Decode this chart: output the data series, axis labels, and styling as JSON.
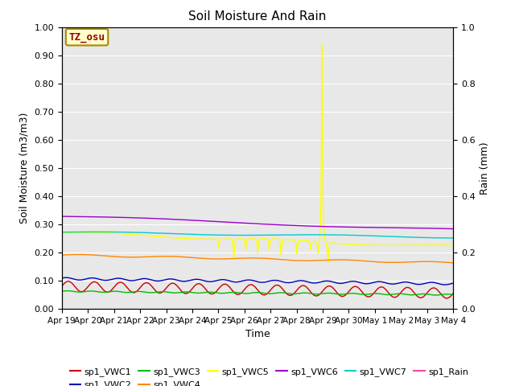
{
  "title": "Soil Moisture And Rain",
  "xlabel": "Time",
  "ylabel_left": "Soil Moisture (m3/m3)",
  "ylabel_right": "Rain (mm)",
  "annotation": "TZ_osu",
  "ylim_left": [
    0.0,
    1.0
  ],
  "ylim_right": [
    0.0,
    1.0
  ],
  "yticks_left": [
    0.0,
    0.1,
    0.2,
    0.3,
    0.4,
    0.5,
    0.6,
    0.7,
    0.8,
    0.9,
    1.0
  ],
  "ytick_labels_left": [
    "0.00",
    "0.10",
    "0.20",
    "0.30",
    "0.40",
    "0.50",
    "0.60",
    "0.70",
    "0.80",
    "0.90",
    "1.00"
  ],
  "yticks_right": [
    0.0,
    0.2,
    0.4,
    0.6,
    0.8,
    1.0
  ],
  "ytick_labels_right": [
    "0.0",
    "0.2",
    "0.4",
    "0.6",
    "0.8",
    "1.0"
  ],
  "colors": {
    "sp1_VWC1": "#cc0000",
    "sp1_VWC2": "#0000bb",
    "sp1_VWC3": "#00bb00",
    "sp1_VWC4": "#ff8800",
    "sp1_VWC5": "#ffff00",
    "sp1_VWC6": "#9900cc",
    "sp1_VWC7": "#00cccc",
    "sp1_Rain": "#ff44aa"
  },
  "bg_color": "#e8e8e8",
  "xtick_labels": [
    "Apr 19",
    "Apr 20",
    "Apr 21",
    "Apr 22",
    "Apr 23",
    "Apr 24",
    "Apr 25",
    "Apr 26",
    "Apr 27",
    "Apr 28",
    "Apr 29",
    "Apr 30",
    "May 1",
    "May 2",
    "May 3",
    "May 4"
  ]
}
